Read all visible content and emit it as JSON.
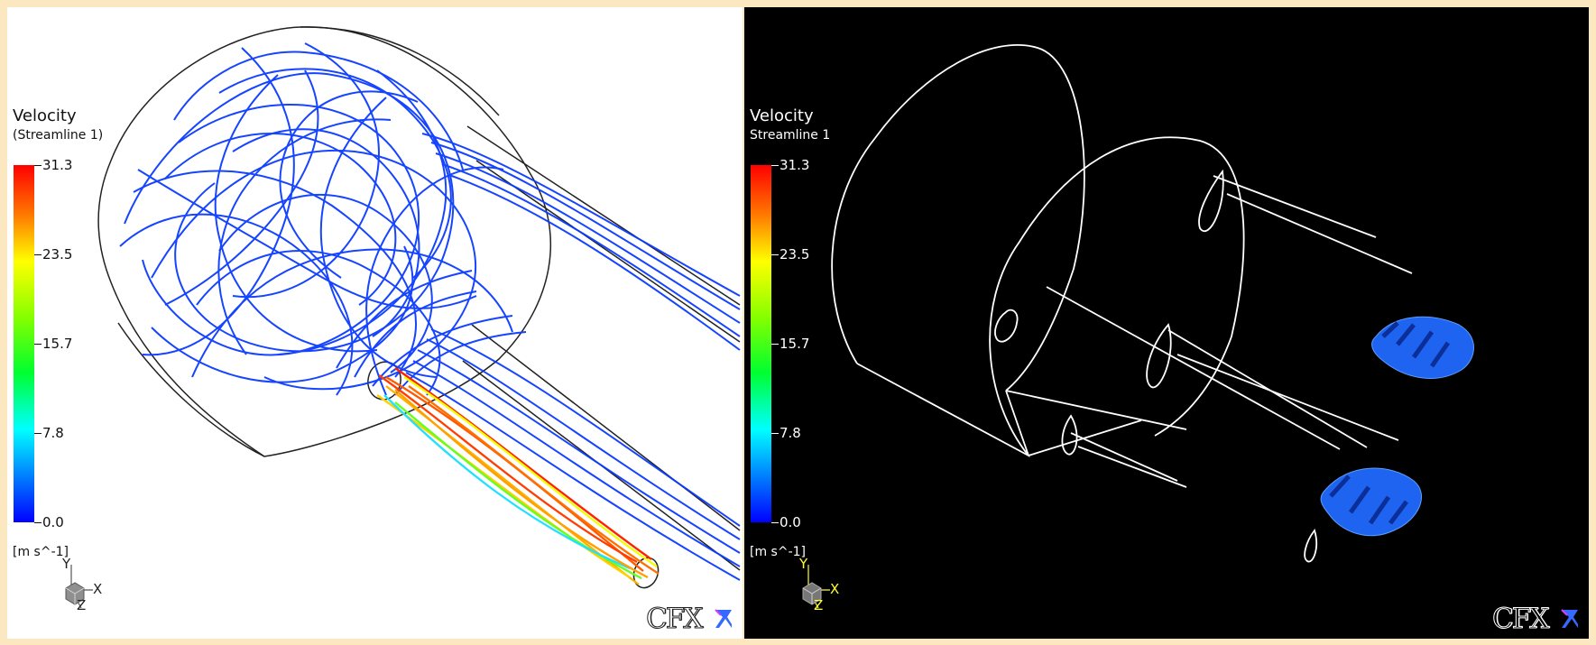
{
  "colors": {
    "page_border": "#fbe7c0",
    "left_background": "#ffffff",
    "right_background": "#000000",
    "stream_blue": "#0a3bff",
    "stream_fast": "#ff5a00",
    "wireframe_dark": "#222222",
    "wireframe_white": "#ffffff",
    "particle_blue": "#1e64f0"
  },
  "left_panel": {
    "legend": {
      "title": "Velocity",
      "subtitle": "(Streamline 1)",
      "ticks": [
        "31.3",
        "23.5",
        "15.7",
        "7.8",
        "0.0"
      ],
      "unit": "[m s^-1]"
    },
    "axis": {
      "y": "Y",
      "x": "X",
      "z": "Z"
    },
    "logo": "CFX"
  },
  "right_panel": {
    "legend": {
      "title": "Velocity",
      "subtitle": "Streamline 1",
      "ticks": [
        "31.3",
        "23.5",
        "15.7",
        "7.8",
        "0.0"
      ],
      "unit": "[m s^-1]"
    },
    "axis": {
      "y": "Y",
      "x": "X",
      "z": "Z"
    },
    "logo": "CFX"
  }
}
